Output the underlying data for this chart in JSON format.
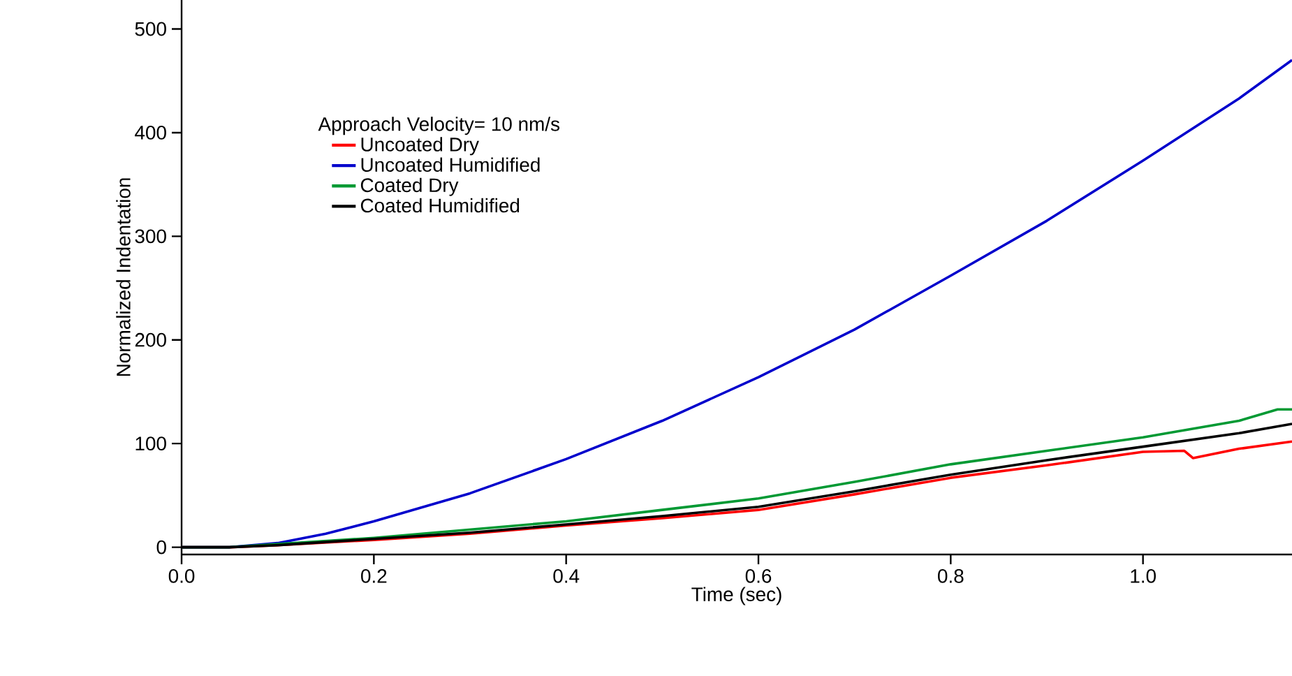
{
  "chart_data": {
    "type": "line",
    "xlabel": "Time (sec)",
    "ylabel": "Normalized Indentation",
    "legend_title": "Approach Velocity= 10 nm/s",
    "legend": "top left",
    "grid": false,
    "marker": "none",
    "line_style": "solid",
    "xlim": [
      0,
      1.155
    ],
    "ylim": [
      -7,
      528
    ],
    "xticks": [
      {
        "value": 0,
        "label": "0.0"
      },
      0.2,
      0.4,
      0.6,
      0.8,
      {
        "value": 1,
        "label": "1.0"
      }
    ],
    "yticks": [
      0,
      100,
      200,
      300,
      400,
      500
    ],
    "series": [
      {
        "name": "Uncoated Dry",
        "color": "#ff0000",
        "x": [
          0,
          0.05,
          0.1,
          0.2,
          0.3,
          0.4,
          0.5,
          0.6,
          0.7,
          0.8,
          0.9,
          1.0,
          1.043,
          1.052,
          1.1,
          1.155
        ],
        "values": [
          0,
          0,
          2,
          7,
          13,
          21,
          28,
          36,
          51,
          67,
          79,
          92,
          93,
          86,
          95,
          102
        ]
      },
      {
        "name": "Uncoated Humidified",
        "color": "#0000cc",
        "x": [
          0,
          0.05,
          0.1,
          0.15,
          0.2,
          0.3,
          0.4,
          0.5,
          0.6,
          0.7,
          0.8,
          0.9,
          1.0,
          1.1,
          1.155
        ],
        "values": [
          0,
          0,
          4,
          13,
          25,
          52,
          85,
          122,
          164,
          210,
          262,
          315,
          373,
          433,
          470
        ]
      },
      {
        "name": "Coated Dry",
        "color": "#009933",
        "x": [
          0,
          0.05,
          0.1,
          0.2,
          0.3,
          0.4,
          0.5,
          0.6,
          0.7,
          0.8,
          0.9,
          1.0,
          1.1,
          1.14,
          1.155
        ],
        "values": [
          0,
          0,
          3,
          9,
          17,
          25,
          36,
          47,
          63,
          80,
          93,
          106,
          122,
          133,
          133
        ]
      },
      {
        "name": "Coated Humidified",
        "color": "#000000",
        "x": [
          0,
          0.05,
          0.1,
          0.2,
          0.3,
          0.4,
          0.5,
          0.6,
          0.7,
          0.8,
          0.9,
          1.0,
          1.1,
          1.155
        ],
        "values": [
          0,
          0,
          2,
          8,
          14,
          22,
          30,
          39,
          54,
          70,
          84,
          97,
          110,
          119
        ]
      }
    ]
  }
}
